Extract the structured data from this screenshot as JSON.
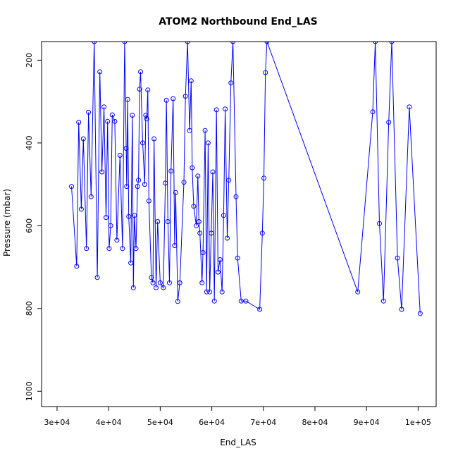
{
  "chart_data": {
    "type": "scatter",
    "title": "ATOM2 Northbound End_LAS",
    "xlabel": "End_LAS",
    "ylabel": "Pressure (mbar)",
    "xlim": [
      27000,
      103500
    ],
    "ylim": [
      1037,
      155
    ],
    "y_inverted": true,
    "grid": false,
    "legend": "none",
    "x_ticks": [
      30000,
      40000,
      50000,
      60000,
      70000,
      80000,
      90000,
      100000
    ],
    "x_tick_labels": [
      "3e+04",
      "4e+04",
      "5e+04",
      "6e+04",
      "7e+04",
      "8e+04",
      "9e+04",
      "1e+05"
    ],
    "y_ticks": [
      200,
      400,
      600,
      800,
      1000
    ],
    "y_tick_labels": [
      "200",
      "400",
      "600",
      "800",
      "1000"
    ],
    "series": [
      {
        "color": "#0000ff",
        "marker": "open-circle",
        "line": true,
        "points": [
          [
            32800,
            505
          ],
          [
            33800,
            698
          ],
          [
            34200,
            350
          ],
          [
            34700,
            560
          ],
          [
            35100,
            390
          ],
          [
            35700,
            655
          ],
          [
            36100,
            326
          ],
          [
            36600,
            530
          ],
          [
            37200,
            155
          ],
          [
            37800,
            725
          ],
          [
            38300,
            228
          ],
          [
            38700,
            470
          ],
          [
            39100,
            313
          ],
          [
            39500,
            580
          ],
          [
            39800,
            348
          ],
          [
            40100,
            655
          ],
          [
            40400,
            600
          ],
          [
            40700,
            332
          ],
          [
            41200,
            348
          ],
          [
            41600,
            635
          ],
          [
            42200,
            430
          ],
          [
            42700,
            655
          ],
          [
            43100,
            155
          ],
          [
            43400,
            413
          ],
          [
            43500,
            505
          ],
          [
            43700,
            295
          ],
          [
            43900,
            578
          ],
          [
            44300,
            690
          ],
          [
            44600,
            333
          ],
          [
            44800,
            750
          ],
          [
            45000,
            575
          ],
          [
            45300,
            655
          ],
          [
            45600,
            505
          ],
          [
            45800,
            490
          ],
          [
            46000,
            270
          ],
          [
            46200,
            228
          ],
          [
            46600,
            400
          ],
          [
            47000,
            500
          ],
          [
            47200,
            333
          ],
          [
            47400,
            342
          ],
          [
            47600,
            272
          ],
          [
            47800,
            540
          ],
          [
            48300,
            725
          ],
          [
            48600,
            738
          ],
          [
            48800,
            390
          ],
          [
            49200,
            750
          ],
          [
            49500,
            590
          ],
          [
            50000,
            738
          ],
          [
            50600,
            750
          ],
          [
            51000,
            497
          ],
          [
            51200,
            297
          ],
          [
            51500,
            590
          ],
          [
            51800,
            738
          ],
          [
            52100,
            468
          ],
          [
            52500,
            293
          ],
          [
            52800,
            648
          ],
          [
            53000,
            520
          ],
          [
            53400,
            783
          ],
          [
            53800,
            738
          ],
          [
            54600,
            495
          ],
          [
            54900,
            287
          ],
          [
            55300,
            155
          ],
          [
            55700,
            370
          ],
          [
            56000,
            250
          ],
          [
            56200,
            460
          ],
          [
            56500,
            553
          ],
          [
            57000,
            600
          ],
          [
            57300,
            480
          ],
          [
            57500,
            590
          ],
          [
            57700,
            618
          ],
          [
            58100,
            738
          ],
          [
            58300,
            665
          ],
          [
            58700,
            370
          ],
          [
            59000,
            760
          ],
          [
            59300,
            400
          ],
          [
            59600,
            760
          ],
          [
            59900,
            618
          ],
          [
            60200,
            470
          ],
          [
            60500,
            782
          ],
          [
            60900,
            320
          ],
          [
            61200,
            712
          ],
          [
            61600,
            682
          ],
          [
            62000,
            760
          ],
          [
            62300,
            575
          ],
          [
            62600,
            318
          ],
          [
            63000,
            630
          ],
          [
            63300,
            490
          ],
          [
            63700,
            255
          ],
          [
            64100,
            155
          ],
          [
            64700,
            530
          ],
          [
            65000,
            678
          ],
          [
            65700,
            782
          ],
          [
            66600,
            782
          ],
          [
            69300,
            802
          ],
          [
            69800,
            618
          ],
          [
            70100,
            485
          ],
          [
            70400,
            230
          ],
          [
            70700,
            155
          ],
          [
            88300,
            760
          ],
          [
            91200,
            325
          ],
          [
            91700,
            155
          ],
          [
            92500,
            595
          ],
          [
            93300,
            782
          ],
          [
            94300,
            350
          ],
          [
            94900,
            155
          ],
          [
            96000,
            678
          ],
          [
            96800,
            802
          ],
          [
            98300,
            313
          ],
          [
            100400,
            812
          ]
        ]
      }
    ]
  }
}
